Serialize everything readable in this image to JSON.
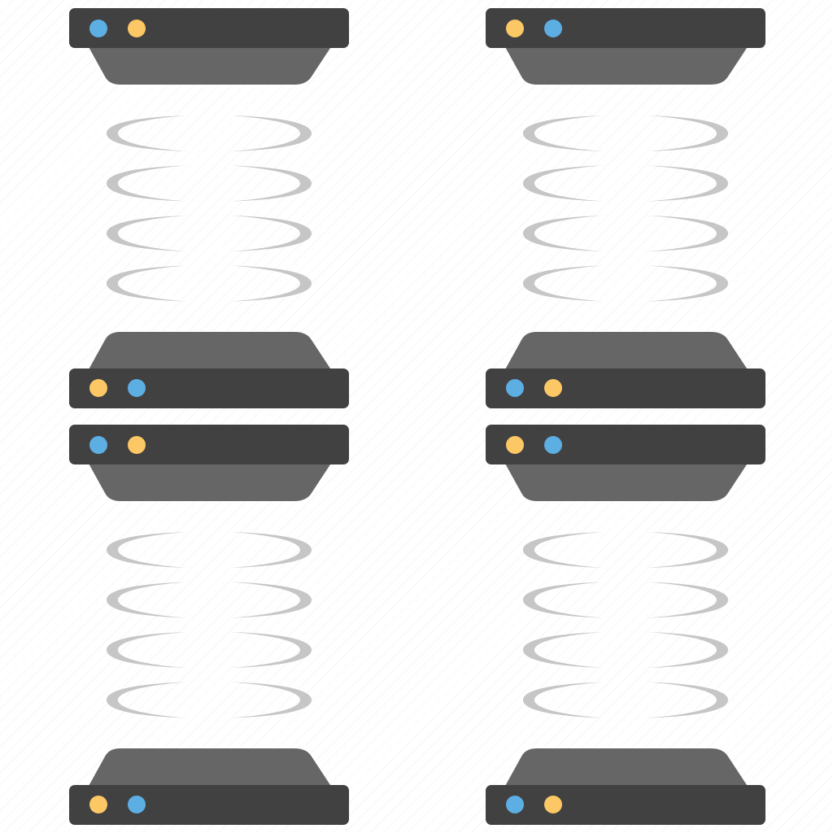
{
  "colors": {
    "server_bar": "#414141",
    "server_base": "#666666",
    "coil": "#c6c6c6",
    "led_blue": "#5daee3",
    "led_yellow": "#fcc865"
  },
  "icon_names": [
    "server-pair-top-left",
    "server-pair-top-right",
    "server-pair-bottom-left",
    "server-pair-bottom-right"
  ],
  "tiles": [
    {
      "name": "server-pair-top-left",
      "top_server_leds": [
        "led_blue",
        "led_yellow"
      ],
      "bottom_server_leds": [
        "led_yellow",
        "led_blue"
      ],
      "coil_loops": 4
    },
    {
      "name": "server-pair-top-right",
      "top_server_leds": [
        "led_yellow",
        "led_blue"
      ],
      "bottom_server_leds": [
        "led_blue",
        "led_yellow"
      ],
      "coil_loops": 4
    },
    {
      "name": "server-pair-bottom-left",
      "top_server_leds": [
        "led_blue",
        "led_yellow"
      ],
      "bottom_server_leds": [
        "led_yellow",
        "led_blue"
      ],
      "coil_loops": 4
    },
    {
      "name": "server-pair-bottom-right",
      "top_server_leds": [
        "led_yellow",
        "led_blue"
      ],
      "bottom_server_leds": [
        "led_blue",
        "led_yellow"
      ],
      "coil_loops": 4
    }
  ]
}
